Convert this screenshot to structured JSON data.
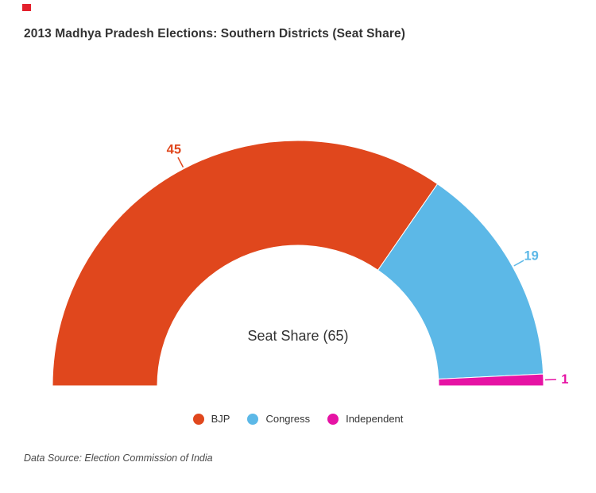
{
  "page": {
    "background_color": "#ffffff"
  },
  "brand_mark": {
    "color": "#e3202c"
  },
  "title": {
    "text": "2013 Madhya Pradesh Elections: Southern Districts (Seat Share)",
    "color": "#333333"
  },
  "chart_data": {
    "type": "pie",
    "variant": "half-donut",
    "title": "2013 Madhya Pradesh Elections: Southern Districts (Seat Share)",
    "center_label": "Seat Share (65)",
    "total_seats": 65,
    "categories": [
      "BJP",
      "Congress",
      "Independent"
    ],
    "values": [
      45,
      19,
      1
    ],
    "colors": [
      "#e0471d",
      "#5cb8e7",
      "#e613a4"
    ],
    "start_angle_deg": 180,
    "end_angle_deg": 0,
    "value_labels_shown": true,
    "legend_position": "bottom"
  },
  "legend": {
    "items": [
      {
        "label": "BJP",
        "color": "#e0471d"
      },
      {
        "label": "Congress",
        "color": "#5cb8e7"
      },
      {
        "label": "Independent",
        "color": "#e613a4"
      }
    ]
  },
  "source_note": {
    "text": "Data Source: Election Commission of India",
    "color": "#4a4a4a"
  }
}
